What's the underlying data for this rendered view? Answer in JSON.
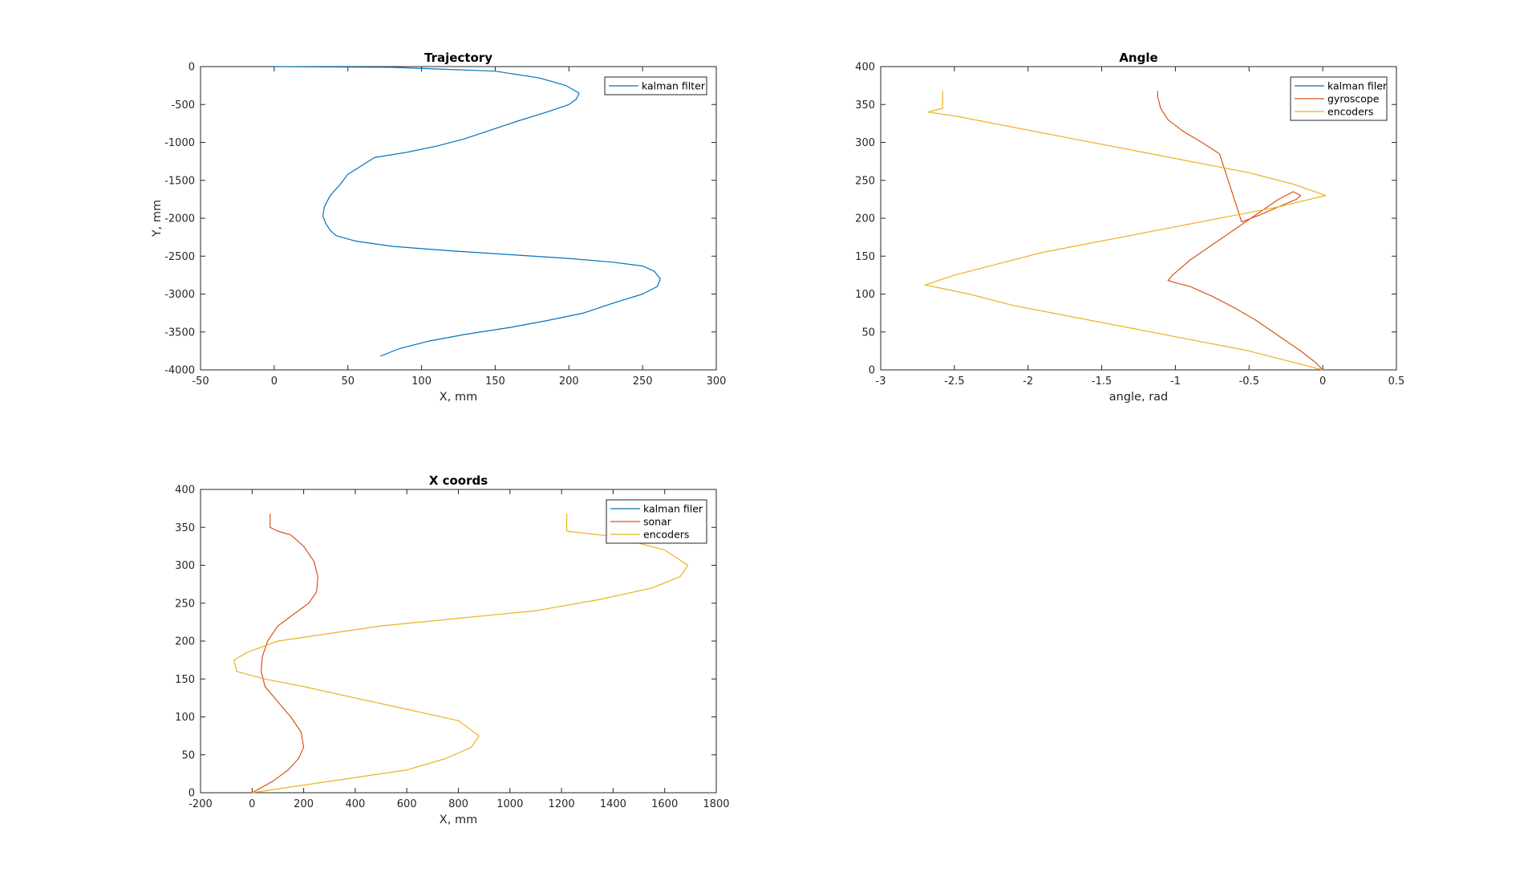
{
  "figure": {
    "background": "#ffffff"
  },
  "colors": {
    "blue": "#0072BD",
    "orange": "#D95319",
    "yellow": "#EDB120",
    "axis": "#262626"
  },
  "chart_data": [
    {
      "type": "line",
      "title": "Trajectory",
      "xlabel": "X, mm",
      "ylabel": "Y, mm",
      "xlim": [
        -50,
        300
      ],
      "ylim": [
        -4000,
        0
      ],
      "xticks": [
        -50,
        0,
        50,
        100,
        150,
        200,
        250,
        300
      ],
      "yticks": [
        -4000,
        -3500,
        -3000,
        -2500,
        -2000,
        -1500,
        -1000,
        -500,
        0
      ],
      "grid": false,
      "legend": "top-right",
      "series": [
        {
          "name": "kalman filter",
          "color": "#0072BD",
          "x": [
            0,
            80,
            150,
            180,
            198,
            207,
            205,
            200,
            185,
            165,
            145,
            128,
            110,
            90,
            68,
            60,
            50,
            45,
            38,
            34,
            33,
            35,
            38,
            42,
            55,
            80,
            120,
            160,
            200,
            230,
            250,
            258,
            262,
            260,
            250,
            230,
            210,
            185,
            160,
            130,
            105,
            85,
            72
          ],
          "y": [
            0,
            -10,
            -60,
            -150,
            -250,
            -350,
            -430,
            -500,
            -600,
            -720,
            -850,
            -960,
            -1050,
            -1130,
            -1200,
            -1300,
            -1420,
            -1550,
            -1700,
            -1850,
            -1970,
            -2070,
            -2160,
            -2230,
            -2300,
            -2370,
            -2430,
            -2480,
            -2530,
            -2580,
            -2630,
            -2700,
            -2800,
            -2900,
            -3000,
            -3120,
            -3250,
            -3350,
            -3440,
            -3530,
            -3620,
            -3720,
            -3820
          ]
        }
      ]
    },
    {
      "type": "line",
      "title": "Angle",
      "xlabel": "angle, rad",
      "ylabel": "",
      "xlim": [
        -3,
        0.5
      ],
      "ylim": [
        0,
        400
      ],
      "xticks": [
        -3,
        -2.5,
        -2,
        -1.5,
        -1,
        -0.5,
        0,
        0.5
      ],
      "yticks": [
        0,
        50,
        100,
        150,
        200,
        250,
        300,
        350,
        400
      ],
      "grid": false,
      "legend": "top-right",
      "series": [
        {
          "name": "kalman filer",
          "color": "#0072BD",
          "x": [],
          "y": []
        },
        {
          "name": "gyroscope",
          "color": "#D95319",
          "x": [
            0,
            -0.05,
            -0.15,
            -0.3,
            -0.45,
            -0.6,
            -0.75,
            -0.9,
            -1.0,
            -1.05,
            -1.02,
            -0.9,
            -0.75,
            -0.6,
            -0.45,
            -0.3,
            -0.2,
            -0.15,
            -0.18,
            -0.3,
            -0.42,
            -0.55,
            -0.7,
            -0.82,
            -0.95,
            -1.05,
            -1.1,
            -1.12,
            -1.12
          ],
          "y": [
            0,
            10,
            25,
            45,
            65,
            82,
            97,
            110,
            115,
            118,
            125,
            145,
            165,
            185,
            205,
            225,
            235,
            230,
            225,
            215,
            205,
            195,
            285,
            300,
            315,
            330,
            345,
            360,
            368
          ]
        },
        {
          "name": "encoders",
          "color": "#EDB120",
          "x": [
            0,
            -0.2,
            -0.5,
            -0.9,
            -1.3,
            -1.7,
            -2.1,
            -2.4,
            -2.6,
            -2.7,
            -2.5,
            -2.2,
            -1.9,
            -1.5,
            -1.1,
            -0.7,
            -0.3,
            0.02,
            -0.2,
            -0.5,
            -0.9,
            -1.3,
            -1.7,
            -2.1,
            -2.5,
            -2.68,
            -2.58,
            -2.58
          ],
          "y": [
            0,
            10,
            25,
            40,
            55,
            70,
            85,
            100,
            108,
            112,
            125,
            140,
            155,
            170,
            185,
            200,
            215,
            230,
            245,
            260,
            275,
            290,
            305,
            320,
            335,
            340,
            345,
            368
          ]
        }
      ]
    },
    {
      "type": "line",
      "title": "X coords",
      "xlabel": "X, mm",
      "ylabel": "",
      "xlim": [
        -200,
        1800
      ],
      "ylim": [
        0,
        400
      ],
      "xticks": [
        -200,
        0,
        200,
        400,
        600,
        800,
        1000,
        1200,
        1400,
        1600,
        1800
      ],
      "yticks": [
        0,
        50,
        100,
        150,
        200,
        250,
        300,
        350,
        400
      ],
      "grid": false,
      "legend": "top-right",
      "series": [
        {
          "name": "kalman filer",
          "color": "#0072BD",
          "x": [],
          "y": []
        },
        {
          "name": "sonar",
          "color": "#D95319",
          "x": [
            0,
            80,
            140,
            180,
            200,
            190,
            150,
            100,
            50,
            35,
            40,
            60,
            100,
            160,
            220,
            250,
            255,
            240,
            200,
            150,
            100,
            70,
            70
          ],
          "y": [
            0,
            15,
            30,
            45,
            60,
            80,
            100,
            120,
            140,
            160,
            180,
            200,
            220,
            235,
            250,
            265,
            285,
            305,
            325,
            340,
            345,
            350,
            368
          ]
        },
        {
          "name": "encoders",
          "color": "#EDB120",
          "x": [
            0,
            200,
            400,
            600,
            750,
            850,
            880,
            800,
            600,
            400,
            200,
            50,
            -60,
            -70,
            -20,
            100,
            300,
            500,
            800,
            1100,
            1350,
            1550,
            1660,
            1690,
            1600,
            1400,
            1220,
            1220
          ],
          "y": [
            0,
            10,
            20,
            30,
            45,
            60,
            75,
            95,
            110,
            125,
            140,
            150,
            160,
            175,
            185,
            200,
            210,
            220,
            230,
            240,
            255,
            270,
            285,
            300,
            320,
            338,
            345,
            368
          ]
        }
      ]
    }
  ]
}
